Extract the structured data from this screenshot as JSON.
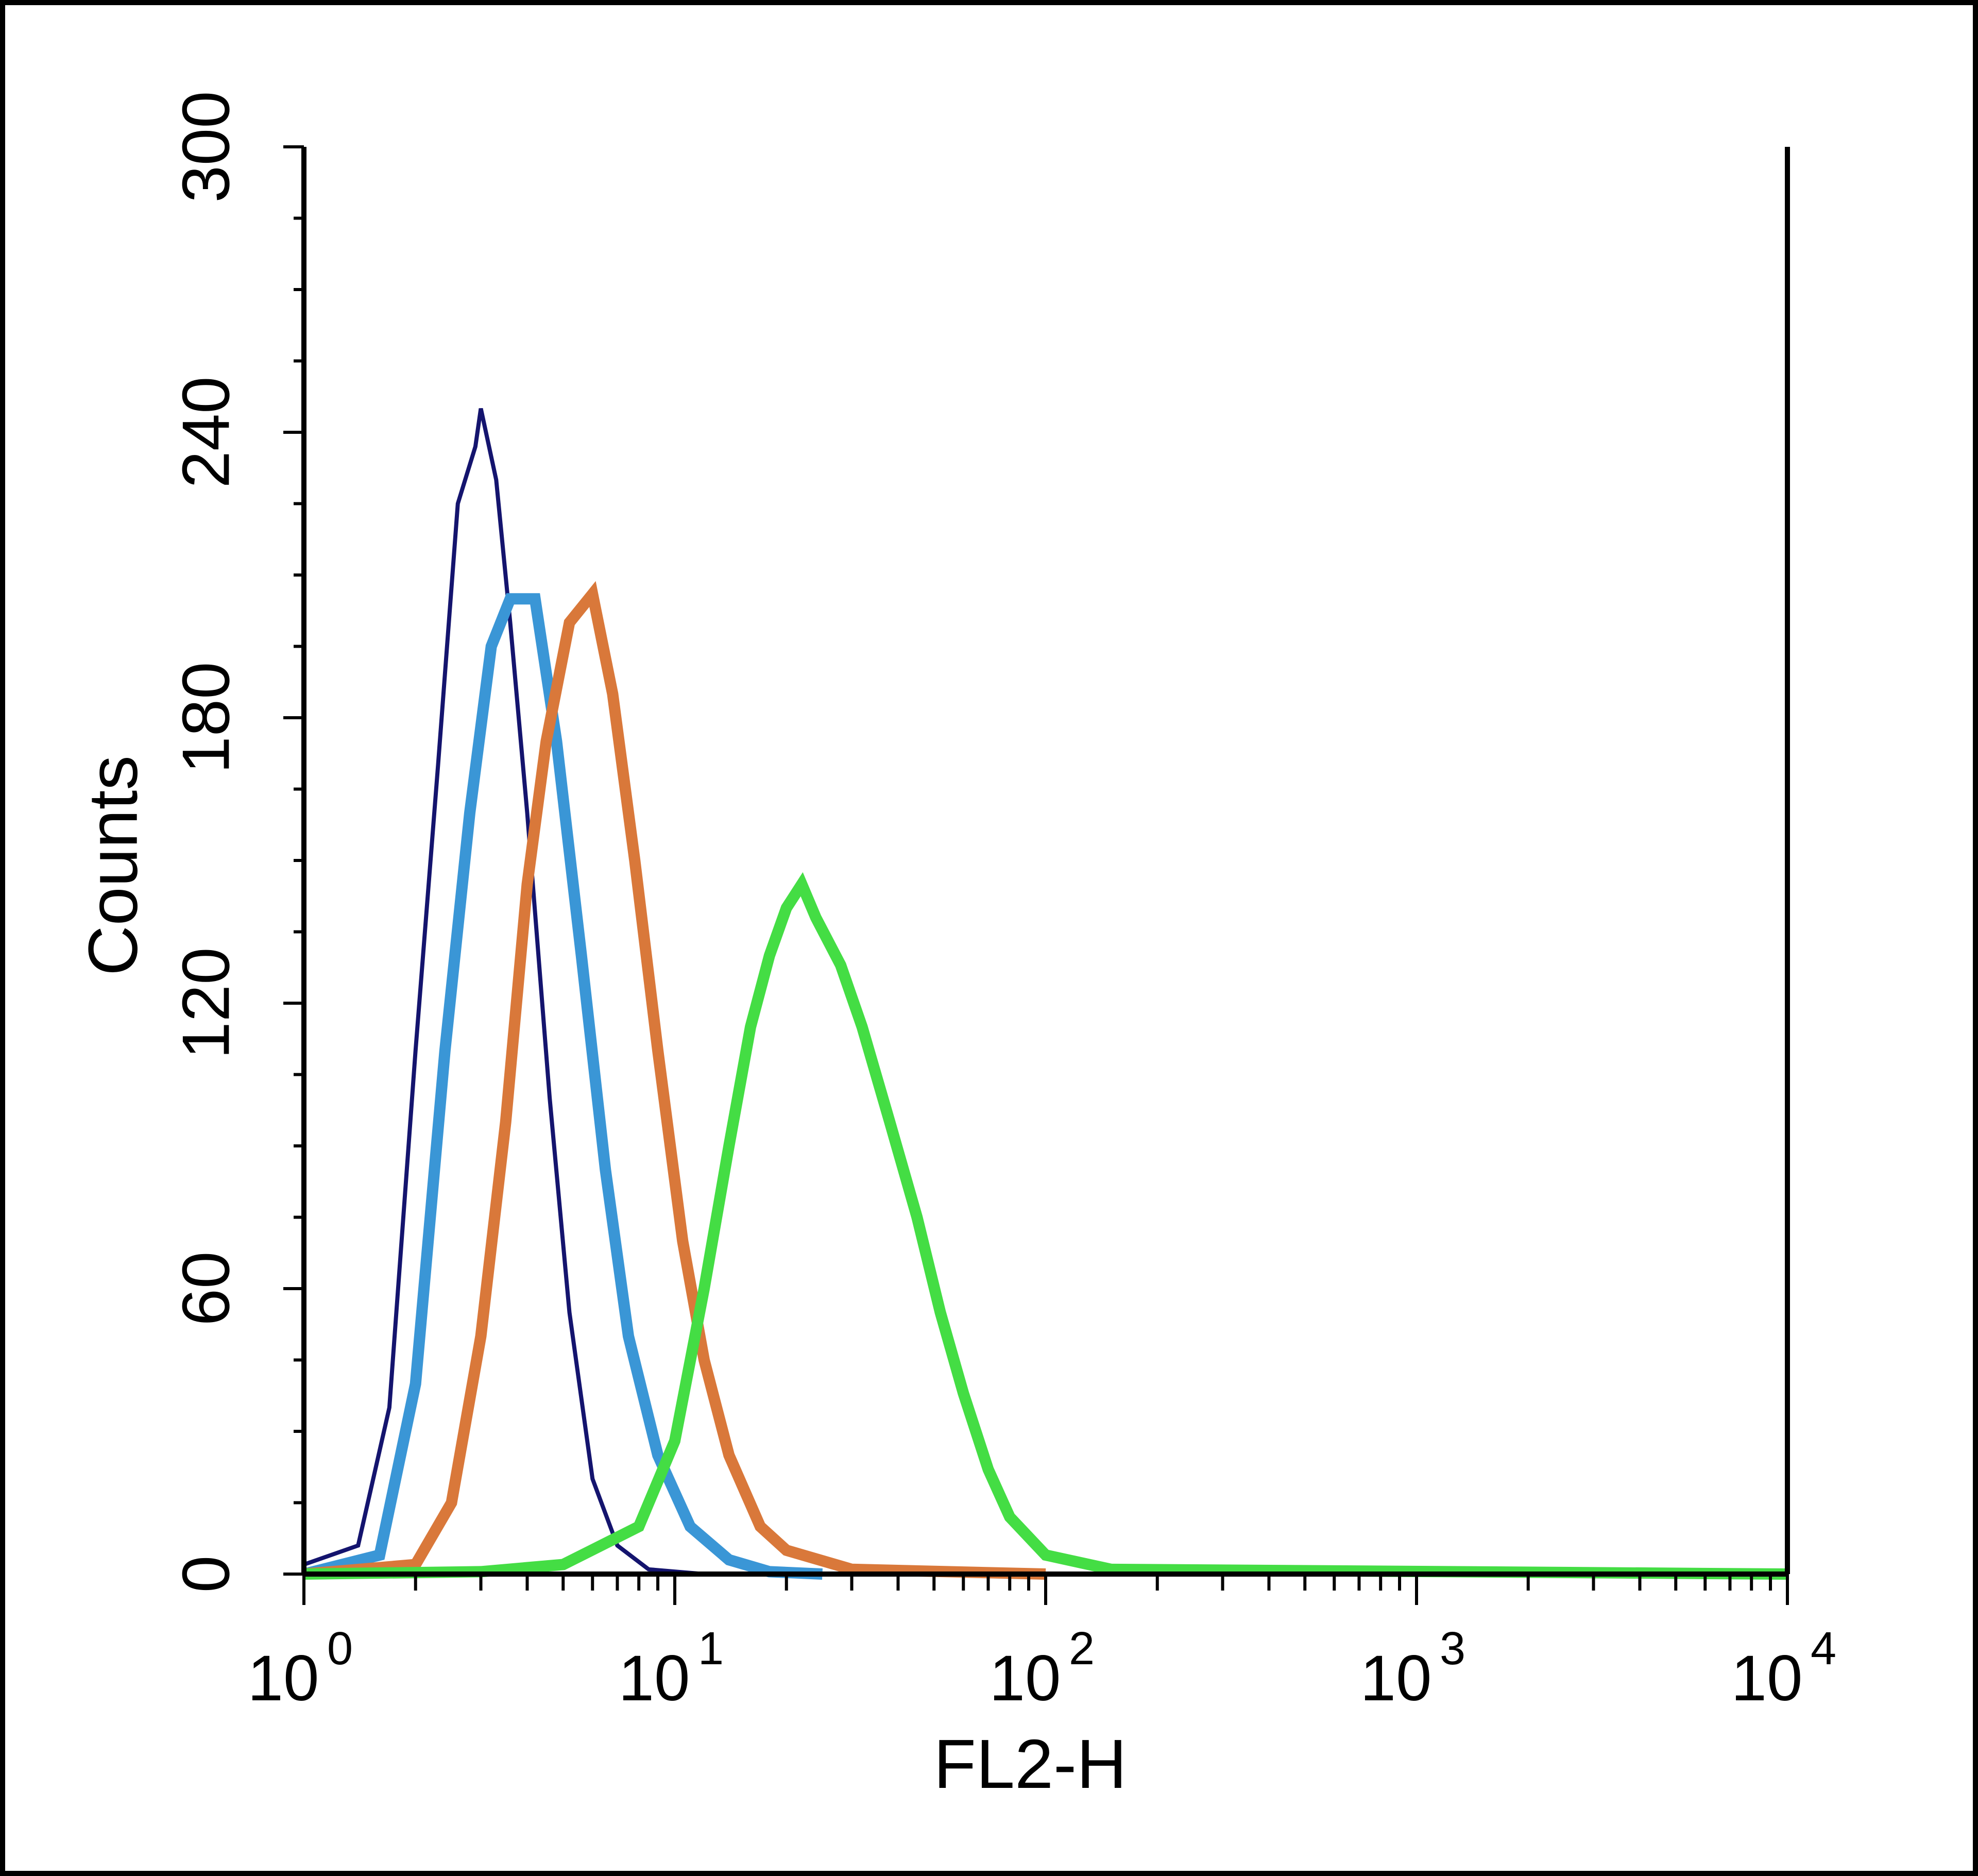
{
  "chart_data": {
    "type": "line",
    "title": "",
    "xlabel": "FL2-H",
    "ylabel": "Counts",
    "x_scale": "log",
    "xlim": [
      1,
      10000
    ],
    "ylim": [
      0,
      300
    ],
    "x_ticks": [
      {
        "base": "10",
        "exp": "0",
        "value": 1
      },
      {
        "base": "10",
        "exp": "1",
        "value": 10
      },
      {
        "base": "10",
        "exp": "2",
        "value": 100
      },
      {
        "base": "10",
        "exp": "3",
        "value": 1000
      },
      {
        "base": "10",
        "exp": "4",
        "value": 10000
      }
    ],
    "y_ticks": [
      "0",
      "60",
      "120",
      "180",
      "240",
      "300"
    ],
    "grid": false,
    "legend": "none",
    "series": [
      {
        "color": "#14146e",
        "values": [
          [
            1,
            2
          ],
          [
            1.4,
            6
          ],
          [
            1.7,
            35
          ],
          [
            2.0,
            110
          ],
          [
            2.3,
            170
          ],
          [
            2.6,
            225
          ],
          [
            2.9,
            237
          ],
          [
            3.0,
            245
          ],
          [
            3.3,
            230
          ],
          [
            3.6,
            200
          ],
          [
            4.0,
            160
          ],
          [
            4.6,
            100
          ],
          [
            5.2,
            55
          ],
          [
            6.0,
            20
          ],
          [
            7.0,
            6
          ],
          [
            8.5,
            1
          ],
          [
            12,
            0
          ],
          [
            20,
            0
          ]
        ]
      },
      {
        "color": "#3a96d6",
        "values": [
          [
            1,
            0
          ],
          [
            1.6,
            4
          ],
          [
            2.0,
            40
          ],
          [
            2.4,
            110
          ],
          [
            2.8,
            160
          ],
          [
            3.2,
            195
          ],
          [
            3.6,
            205
          ],
          [
            4.2,
            205
          ],
          [
            4.8,
            175
          ],
          [
            5.6,
            130
          ],
          [
            6.5,
            85
          ],
          [
            7.5,
            50
          ],
          [
            9.0,
            25
          ],
          [
            11,
            10
          ],
          [
            14,
            3
          ],
          [
            18,
            0.5
          ],
          [
            25,
            0
          ]
        ]
      },
      {
        "color": "#d9783a",
        "values": [
          [
            1,
            0
          ],
          [
            2,
            2
          ],
          [
            2.5,
            15
          ],
          [
            3.0,
            50
          ],
          [
            3.5,
            95
          ],
          [
            4.0,
            145
          ],
          [
            4.5,
            175
          ],
          [
            5.2,
            200
          ],
          [
            6.0,
            206
          ],
          [
            6.8,
            185
          ],
          [
            7.8,
            150
          ],
          [
            9.0,
            110
          ],
          [
            10.5,
            70
          ],
          [
            12,
            45
          ],
          [
            14,
            25
          ],
          [
            17,
            10
          ],
          [
            20,
            5
          ],
          [
            30,
            1
          ],
          [
            100,
            0
          ]
        ]
      },
      {
        "color": "#44dd44",
        "values": [
          [
            1,
            0
          ],
          [
            3,
            0.5
          ],
          [
            5,
            2
          ],
          [
            8,
            10
          ],
          [
            10,
            28
          ],
          [
            12,
            60
          ],
          [
            14,
            90
          ],
          [
            16,
            115
          ],
          [
            18,
            130
          ],
          [
            20,
            140
          ],
          [
            22,
            145
          ],
          [
            24,
            138
          ],
          [
            28,
            128
          ],
          [
            32,
            115
          ],
          [
            38,
            95
          ],
          [
            45,
            75
          ],
          [
            52,
            55
          ],
          [
            60,
            38
          ],
          [
            70,
            22
          ],
          [
            80,
            12
          ],
          [
            100,
            4
          ],
          [
            150,
            1
          ],
          [
            10000,
            0
          ]
        ]
      }
    ]
  }
}
